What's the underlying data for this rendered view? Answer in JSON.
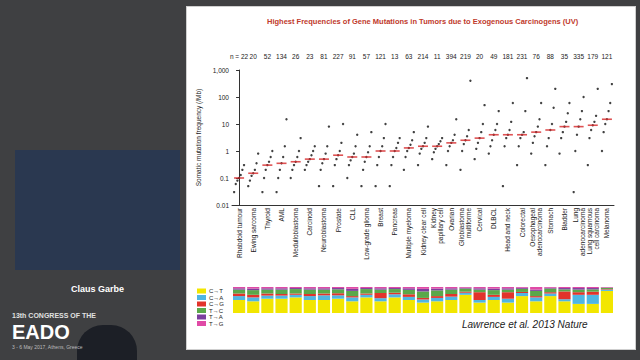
{
  "chart_data": {
    "type": "scatter",
    "title": "Highest Frequencies of Gene Mutations in Tumors due to Exogenous Carcinogens (UV)",
    "y_label": "Somatic mutation frequency (/Mb)",
    "categories": [
      "Rhabdoid tumour",
      "Ewing sarcoma",
      "Thyroid",
      "AML",
      "Medulloblastoma",
      "Carcinoid",
      "Neuroblastoma",
      "Prostate",
      "CLL",
      "Low-grade glioma",
      "Breast",
      "Pancreas",
      "Multiple myeloma",
      "Kidney clear cell",
      "Kidney\npapillary cell",
      "Ovarian",
      "Glioblastoma\nmultiforme",
      "Cervical",
      "DLBCL",
      "Head and neck",
      "Colorectal",
      "Oesophageal\nadenocarcinoma",
      "Stomach",
      "Bladder",
      "Lung\nadenocarcinoma",
      "Lung squamous\ncell carcinoma",
      "Melanoma"
    ],
    "sample_size_prefix": "n =",
    "sample_sizes": [
      22,
      20,
      52,
      134,
      26,
      23,
      81,
      227,
      91,
      57,
      121,
      13,
      63,
      214,
      11,
      394,
      219,
      20,
      49,
      181,
      231,
      76,
      88,
      35,
      335,
      179,
      121
    ],
    "values": [
      [
        0.03,
        0.06,
        0.08,
        0.1,
        0.13,
        0.2,
        0.3
      ],
      [
        0.05,
        0.08,
        0.12,
        0.15,
        0.2,
        0.35,
        0.8
      ],
      [
        0.03,
        0.1,
        0.2,
        0.3,
        0.4,
        0.6,
        1
      ],
      [
        0.03,
        0.1,
        0.2,
        0.35,
        0.6,
        1.5,
        15
      ],
      [
        0.1,
        0.2,
        0.3,
        0.4,
        0.6,
        1,
        3
      ],
      [
        0.2,
        0.3,
        0.4,
        0.5,
        0.7,
        1,
        1.5
      ],
      [
        0.05,
        0.2,
        0.35,
        0.5,
        0.8,
        1.5,
        8
      ],
      [
        0.05,
        0.3,
        0.5,
        0.7,
        1,
        2,
        10
      ],
      [
        0.1,
        0.3,
        0.45,
        0.6,
        0.8,
        1.5,
        4
      ],
      [
        0.05,
        0.2,
        0.4,
        0.6,
        0.9,
        1.5,
        5
      ],
      [
        0.05,
        0.3,
        0.6,
        1,
        1.5,
        3,
        10
      ],
      [
        0.05,
        0.3,
        0.6,
        1,
        1.3,
        2,
        3
      ],
      [
        0.2,
        0.6,
        1,
        1.3,
        1.7,
        2.5,
        5
      ],
      [
        0.3,
        0.8,
        1.2,
        1.5,
        2,
        3,
        8
      ],
      [
        0.5,
        0.9,
        1.2,
        1.5,
        1.8,
        2.3,
        3
      ],
      [
        0.3,
        1,
        1.5,
        2,
        2.5,
        4,
        15
      ],
      [
        0.2,
        1,
        1.8,
        2.5,
        3.5,
        6,
        400
      ],
      [
        0.5,
        1.2,
        2,
        3,
        5,
        10,
        50
      ],
      [
        0.8,
        1.5,
        2.5,
        4,
        6,
        10,
        30
      ],
      [
        0.05,
        1.5,
        3,
        4,
        6,
        12,
        60
      ],
      [
        0.3,
        1.5,
        3,
        4,
        5,
        30,
        500
      ],
      [
        0.8,
        2,
        3.5,
        5,
        8,
        15,
        60
      ],
      [
        0.3,
        1.5,
        3,
        6,
        10,
        40,
        200
      ],
      [
        0.8,
        3,
        5,
        8,
        12,
        25,
        60
      ],
      [
        0.03,
        1,
        4,
        8,
        15,
        30,
        100
      ],
      [
        0.3,
        3,
        6,
        9,
        12,
        20,
        200
      ],
      [
        1,
        5,
        10,
        15,
        30,
        60,
        300
      ]
    ],
    "color": "#111111",
    "marker": "circle",
    "medians": {
      "color": "#d62728",
      "values": [
        0.1,
        0.15,
        0.3,
        0.35,
        0.4,
        0.5,
        0.5,
        0.7,
        0.6,
        0.6,
        1,
        1,
        1.3,
        1.5,
        1.5,
        2,
        2.5,
        3,
        4,
        4,
        4,
        5,
        6,
        8,
        8,
        9,
        15
      ]
    },
    "log": "y",
    "ylim": [
      0.01,
      1000
    ],
    "yticks": [
      0.01,
      0.1,
      1,
      10,
      100,
      {
        "value": 1000,
        "label": "1,000"
      }
    ],
    "grid": false,
    "spectrum": {
      "type": "bar",
      "stacked": true,
      "tick_labels": false,
      "ylim": [
        0,
        100
      ],
      "legend": "left",
      "series": [
        {
          "name": "C→T",
          "color": "#f2e600",
          "values": [
            50,
            45,
            55,
            55,
            60,
            50,
            50,
            55,
            45,
            60,
            45,
            60,
            50,
            40,
            45,
            50,
            70,
            40,
            50,
            40,
            65,
            45,
            65,
            45,
            35,
            35,
            85
          ]
        },
        {
          "name": "C→A",
          "color": "#4fb6e3",
          "values": [
            15,
            15,
            12,
            12,
            10,
            15,
            18,
            13,
            15,
            10,
            12,
            12,
            12,
            12,
            13,
            13,
            8,
            10,
            12,
            15,
            12,
            15,
            10,
            8,
            35,
            35,
            5
          ]
        },
        {
          "name": "C→G",
          "color": "#e2332b",
          "values": [
            10,
            10,
            8,
            6,
            5,
            8,
            7,
            8,
            5,
            5,
            20,
            6,
            10,
            6,
            7,
            10,
            4,
            30,
            8,
            25,
            4,
            5,
            5,
            30,
            10,
            12,
            2
          ]
        },
        {
          "name": "T→C",
          "color": "#5aa84a",
          "values": [
            15,
            18,
            15,
            17,
            17,
            17,
            15,
            15,
            20,
            17,
            13,
            14,
            17,
            25,
            22,
            17,
            12,
            10,
            18,
            10,
            12,
            20,
            14,
            8,
            10,
            9,
            5
          ]
        },
        {
          "name": "T→A",
          "color": "#7b3f9e",
          "values": [
            5,
            6,
            5,
            5,
            4,
            5,
            5,
            5,
            8,
            4,
            5,
            4,
            6,
            10,
            7,
            5,
            3,
            5,
            6,
            5,
            4,
            5,
            3,
            5,
            6,
            5,
            1
          ]
        },
        {
          "name": "T→G",
          "color": "#e04aa6",
          "values": [
            5,
            6,
            5,
            5,
            4,
            5,
            5,
            4,
            7,
            4,
            5,
            4,
            5,
            7,
            6,
            5,
            3,
            5,
            6,
            5,
            3,
            10,
            3,
            4,
            4,
            4,
            2
          ]
        }
      ]
    },
    "annotations": [
      "Lawrence et al. 2013 Nature"
    ]
  },
  "slide": {
    "speaker": "Claus Garbe",
    "event": [
      "13th CONGRESS OF THE",
      "EADO",
      "3 - 6 May 2017, Athens, Greece"
    ]
  }
}
